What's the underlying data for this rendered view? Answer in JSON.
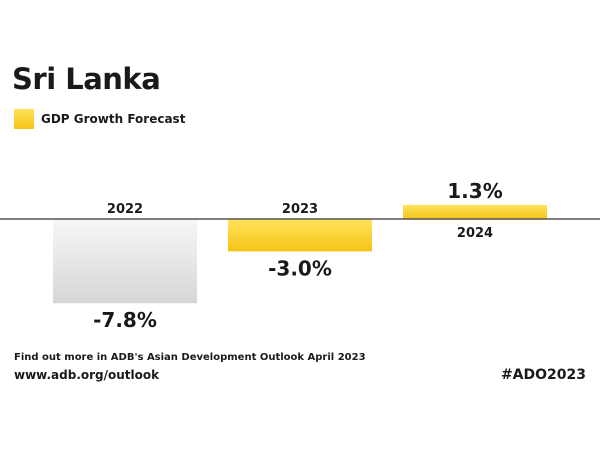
{
  "page": {
    "title": "Sri Lanka",
    "legend_label": "GDP Growth Forecast",
    "footer_note": "Find out more in ADB's Asian Development Outlook April 2023",
    "footer_url": "www.adb.org/outlook",
    "hashtag": "#ADO2023"
  },
  "colors": {
    "positive_forecast": "#f7c41a",
    "forecast_light": "#ffe45c",
    "actual_estimate": "#d9d9d9",
    "axis": "#555555",
    "text": "#1a1a1a"
  },
  "chart_data": {
    "type": "bar",
    "title": "",
    "xlabel": "",
    "ylabel": "",
    "categories": [
      "2022",
      "2023",
      "2024"
    ],
    "series": [
      {
        "name": "GDP Growth Forecast",
        "values": [
          -7.8,
          -3.0,
          1.3
        ],
        "value_labels": [
          "-7.8%",
          "-3.0%",
          "1.3%"
        ]
      }
    ],
    "bar_styles": [
      "grey",
      "yellow",
      "yellow"
    ],
    "ylim": [
      -7.8,
      1.3
    ],
    "grid": false,
    "legend": "top-left"
  }
}
